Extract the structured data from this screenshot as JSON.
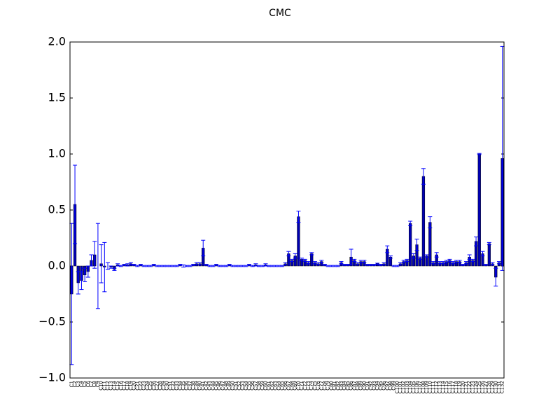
{
  "chart_data": {
    "type": "bar",
    "title": "CMC",
    "categories": [
      "C1",
      "C2",
      "C3",
      "C4",
      "C5",
      "C6",
      "C7",
      "C8",
      "C9",
      "C10",
      "C11",
      "C12",
      "C13",
      "C14",
      "C15",
      "C16",
      "C17",
      "C18",
      "C19",
      "C20",
      "C21",
      "C22",
      "C23",
      "C24",
      "C25",
      "C26",
      "C27",
      "C28",
      "C29",
      "C30",
      "C31",
      "C32",
      "C33",
      "C34",
      "C35",
      "C36",
      "C37",
      "C38",
      "C39",
      "C40",
      "C41",
      "C42",
      "C43",
      "C44",
      "C45",
      "C46",
      "C47",
      "C48",
      "C49",
      "C50",
      "C51",
      "C52",
      "C53",
      "C54",
      "C55",
      "C56",
      "C57",
      "C58",
      "C59",
      "C60",
      "C61",
      "C62",
      "C63",
      "C64",
      "C65",
      "C66",
      "C67",
      "C68",
      "C69",
      "C70",
      "C71",
      "C72",
      "C73",
      "C74",
      "C75",
      "C76",
      "C77",
      "C78",
      "C79",
      "C80",
      "C81",
      "C82",
      "C83",
      "C84",
      "C85",
      "C86",
      "C87",
      "C88",
      "C89",
      "C90",
      "C91",
      "C92",
      "C93",
      "C94",
      "C95",
      "C96",
      "C97",
      "C98",
      "C99",
      "C100",
      "C101",
      "C102",
      "C103",
      "C104",
      "C105",
      "C106",
      "C107",
      "C108",
      "C109",
      "C110",
      "C111",
      "C112",
      "C113",
      "C114",
      "C115",
      "C116",
      "C117",
      "C118",
      "C119",
      "C120",
      "C121",
      "C122",
      "C123",
      "C124",
      "C125",
      "C126",
      "C127",
      "C128",
      "C129",
      "C130",
      "C131",
      "C132"
    ],
    "values": [
      -0.25,
      0.55,
      -0.15,
      -0.13,
      -0.08,
      -0.05,
      0.05,
      0.1,
      0.0,
      0.02,
      -0.01,
      0.0,
      -0.01,
      -0.03,
      0.01,
      0.0,
      0.01,
      0.01,
      0.02,
      0.01,
      0.0,
      0.01,
      0.0,
      0.0,
      0.0,
      0.01,
      0.0,
      0.0,
      0.0,
      0.0,
      0.0,
      0.0,
      0.0,
      0.01,
      0.0,
      0.0,
      0.0,
      0.01,
      0.02,
      0.02,
      0.16,
      0.01,
      0.0,
      0.0,
      0.01,
      0.0,
      0.0,
      0.0,
      0.01,
      0.0,
      0.0,
      0.0,
      0.0,
      0.0,
      0.01,
      0.0,
      0.01,
      0.0,
      0.0,
      0.01,
      0.0,
      0.0,
      0.0,
      0.0,
      0.0,
      0.02,
      0.11,
      0.05,
      0.09,
      0.44,
      0.06,
      0.05,
      0.03,
      0.11,
      0.03,
      0.02,
      0.04,
      0.01,
      0.0,
      0.0,
      0.0,
      0.0,
      0.03,
      0.01,
      0.01,
      0.08,
      0.05,
      0.02,
      0.04,
      0.04,
      0.01,
      0.01,
      0.01,
      0.02,
      0.01,
      0.02,
      0.15,
      0.08,
      0.0,
      0.0,
      0.02,
      0.04,
      0.05,
      0.38,
      0.09,
      0.19,
      0.07,
      0.8,
      0.09,
      0.39,
      0.03,
      0.1,
      0.03,
      0.03,
      0.04,
      0.05,
      0.03,
      0.04,
      0.04,
      0.01,
      0.03,
      0.08,
      0.05,
      0.22,
      1.0,
      0.11,
      0.01,
      0.2,
      0.02,
      -0.1,
      0.03,
      0.96
    ],
    "errors": [
      0.63,
      0.35,
      0.1,
      0.08,
      0.06,
      0.05,
      0.05,
      0.12,
      0.38,
      0.17,
      0.22,
      0.03,
      0.01,
      0.01,
      0.01,
      0.005,
      0.005,
      0.01,
      0.01,
      0.005,
      0.005,
      0.005,
      0.005,
      0.005,
      0.005,
      0.005,
      0.005,
      0.005,
      0.005,
      0.005,
      0.005,
      0.005,
      0.005,
      0.005,
      0.01,
      0.005,
      0.005,
      0.005,
      0.01,
      0.01,
      0.07,
      0.005,
      0.005,
      0.005,
      0.005,
      0.005,
      0.005,
      0.005,
      0.005,
      0.005,
      0.005,
      0.005,
      0.005,
      0.005,
      0.005,
      0.005,
      0.01,
      0.005,
      0.005,
      0.01,
      0.005,
      0.005,
      0.005,
      0.005,
      0.005,
      0.01,
      0.02,
      0.01,
      0.02,
      0.05,
      0.01,
      0.01,
      0.01,
      0.01,
      0.01,
      0.01,
      0.01,
      0.005,
      0.005,
      0.005,
      0.005,
      0.005,
      0.01,
      0.005,
      0.005,
      0.07,
      0.01,
      0.01,
      0.01,
      0.01,
      0.005,
      0.005,
      0.005,
      0.005,
      0.005,
      0.01,
      0.03,
      0.01,
      0.005,
      0.005,
      0.01,
      0.01,
      0.01,
      0.02,
      0.02,
      0.05,
      0.01,
      0.07,
      0.01,
      0.05,
      0.01,
      0.02,
      0.01,
      0.01,
      0.01,
      0.01,
      0.01,
      0.01,
      0.01,
      0.005,
      0.01,
      0.02,
      0.01,
      0.04,
      0.005,
      0.02,
      0.005,
      0.01,
      0.01,
      0.08,
      0.01,
      1.0
    ],
    "color": "#0000b4",
    "error_color": "#0000ff",
    "ylim": [
      -1.0,
      2.0
    ],
    "yticks": [
      {
        "value": -1.0,
        "label": "−1.0"
      },
      {
        "value": -0.5,
        "label": "−0.5"
      },
      {
        "value": 0.0,
        "label": "0.0"
      },
      {
        "value": 0.5,
        "label": "0.5"
      },
      {
        "value": 1.0,
        "label": "1.0"
      },
      {
        "value": 1.5,
        "label": "1.5"
      },
      {
        "value": 2.0,
        "label": "2.0"
      }
    ]
  }
}
